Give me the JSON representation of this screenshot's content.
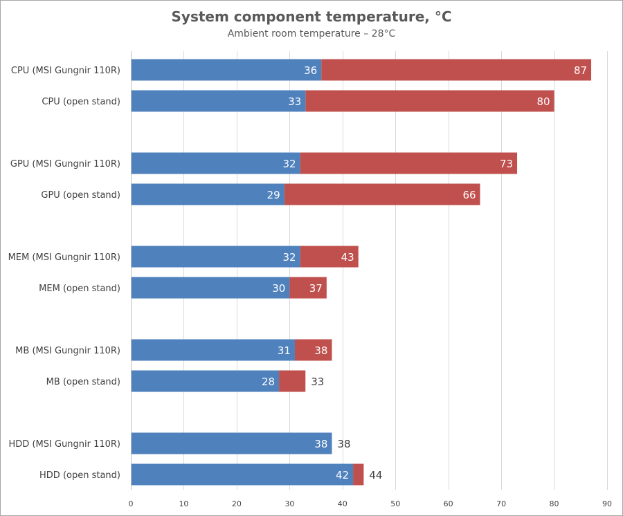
{
  "chart_data": {
    "type": "bar",
    "orientation": "horizontal",
    "stacked": false,
    "title": "System component temperature, °C",
    "subtitle": "Ambient room temperature – 28°C",
    "xlim": [
      0,
      90
    ],
    "x_ticks": [
      0,
      10,
      20,
      30,
      40,
      50,
      60,
      70,
      80,
      90
    ],
    "grid": true,
    "legend": "none",
    "categories": [
      "CPU (MSI Gungnir 110R)",
      "CPU (open stand)",
      "GPU (MSI Gungnir 110R)",
      "GPU (open stand)",
      "MEM (MSI Gungnir 110R)",
      "MEM (open stand)",
      "MB (MSI Gungnir 110R)",
      "MB (open stand)",
      "HDD (MSI Gungnir 110R)",
      "HDD (open stand)"
    ],
    "series": [
      {
        "values": [
          36,
          33,
          32,
          29,
          32,
          30,
          31,
          28,
          38,
          42
        ],
        "color": "#4f81bd"
      },
      {
        "values": [
          87,
          80,
          73,
          66,
          43,
          37,
          38,
          33,
          38,
          44
        ],
        "color": "#c0504d"
      }
    ]
  }
}
